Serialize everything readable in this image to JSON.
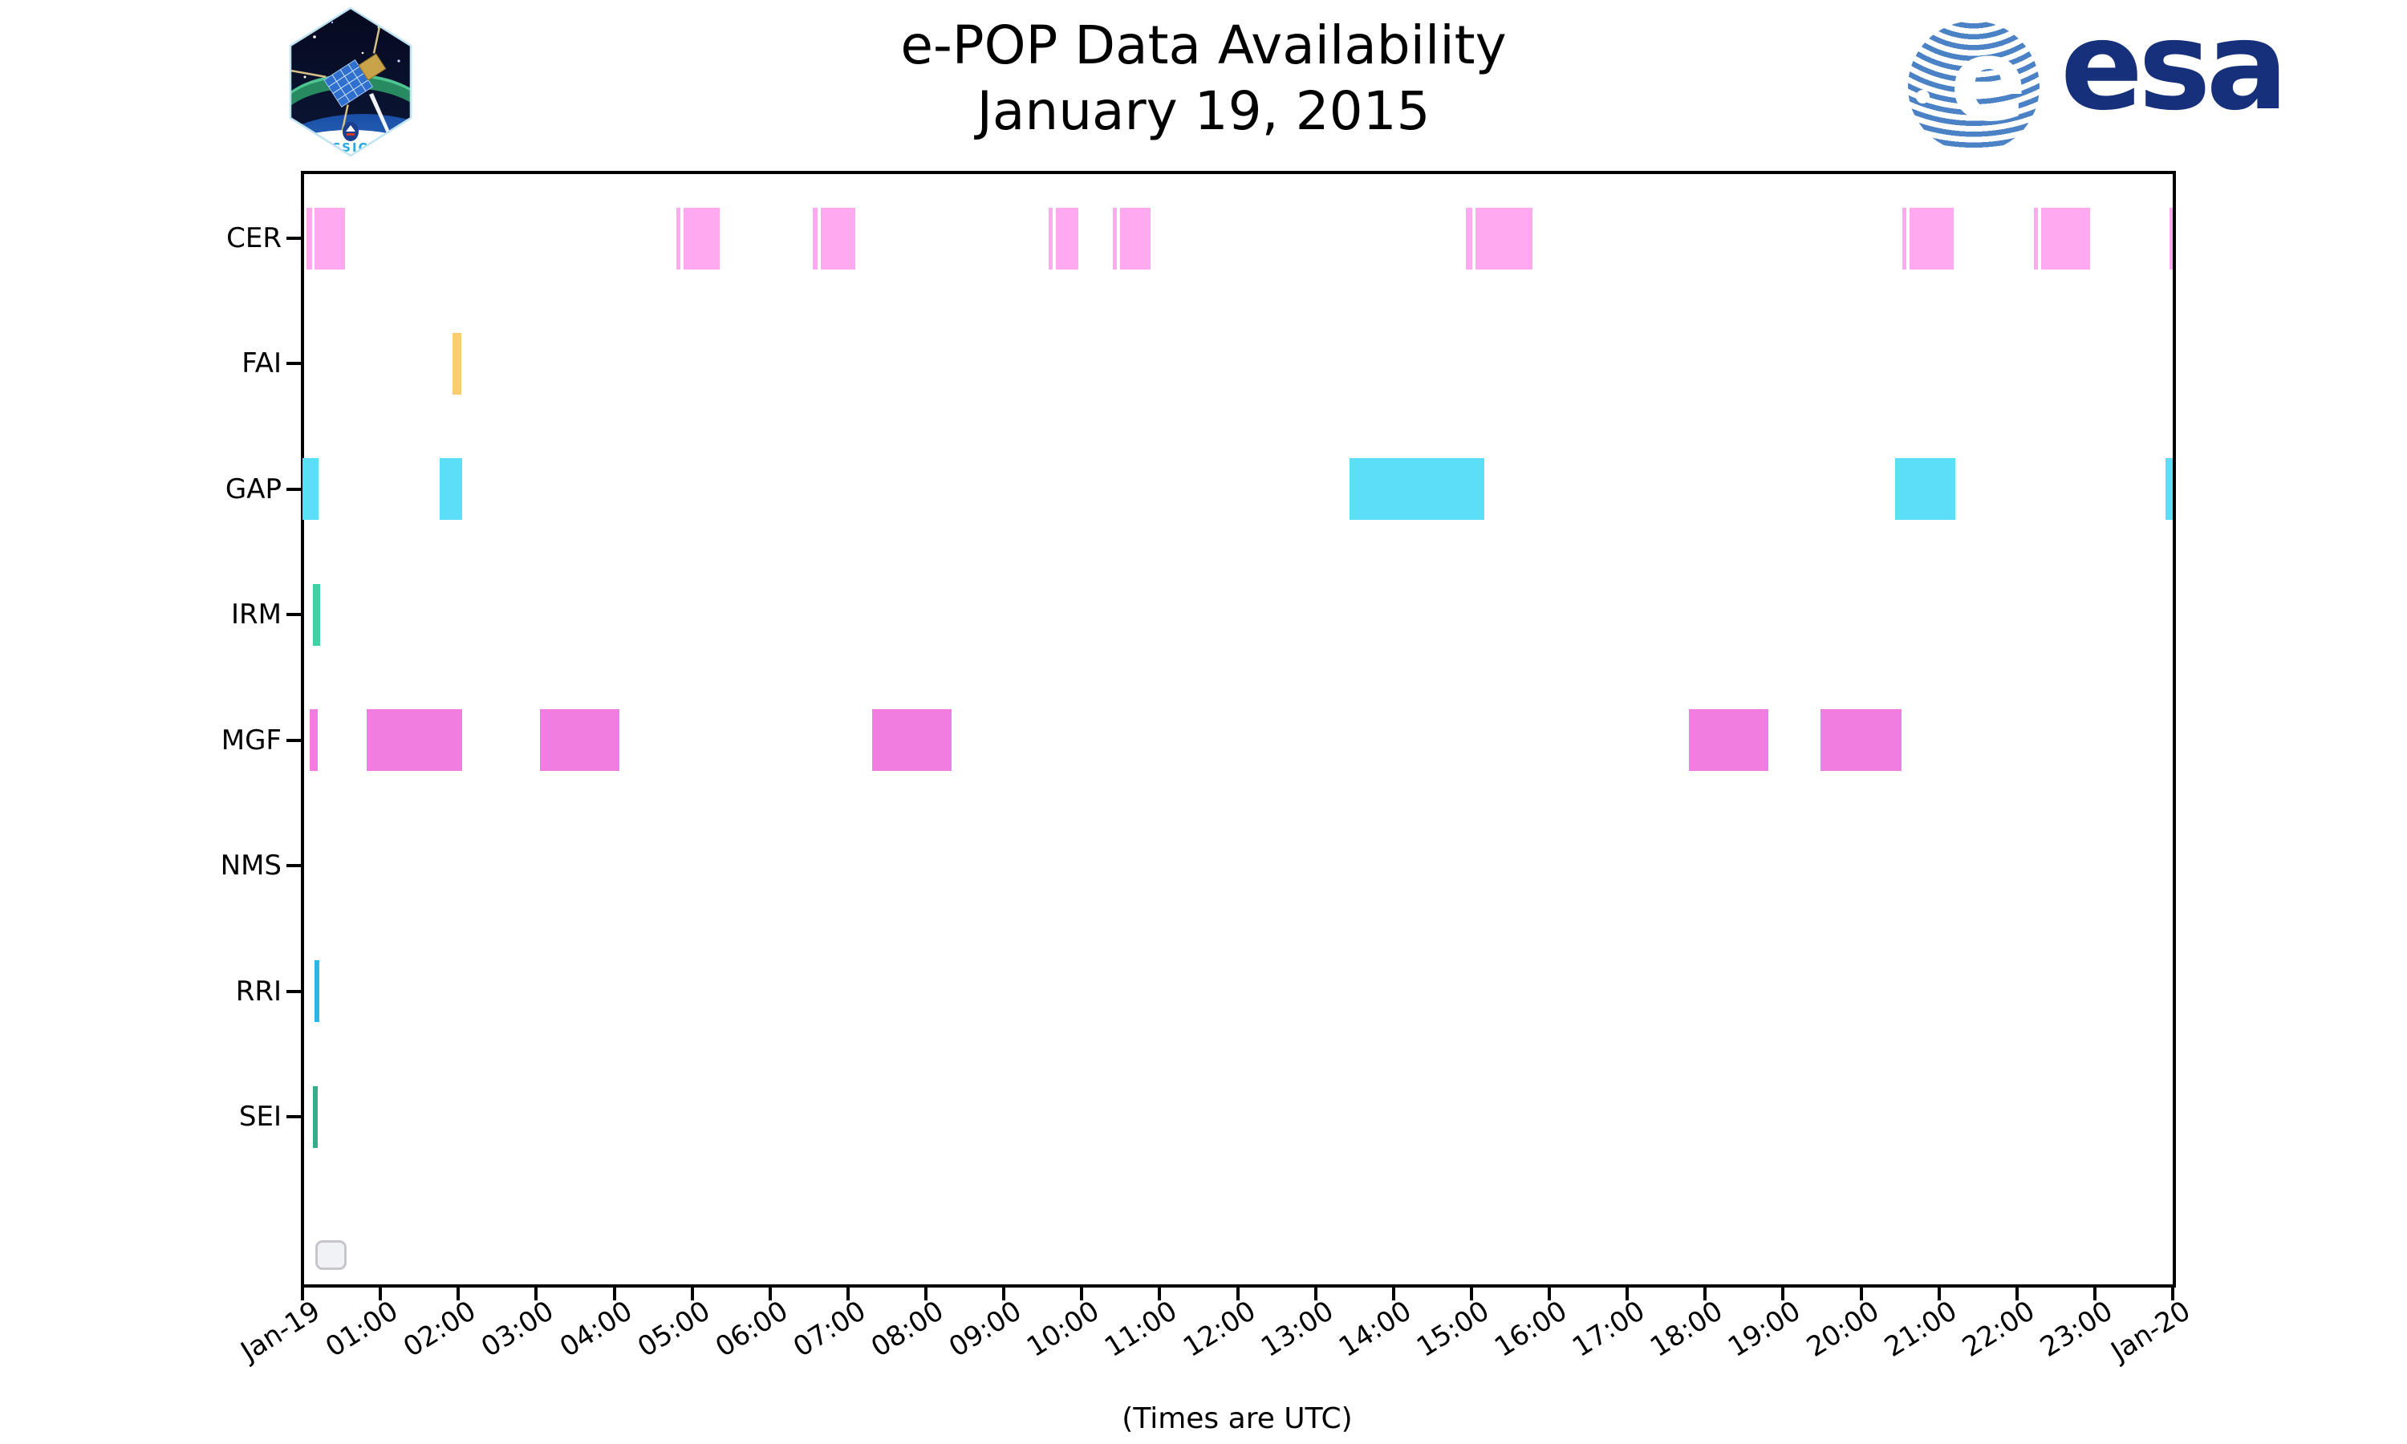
{
  "header": {
    "title_line1": "e-POP Data Availability",
    "title_line2": "January 19, 2015"
  },
  "logos": {
    "cassiope": {
      "label": "CASSIOPE"
    },
    "esa": {
      "wordmark": "esa",
      "globe_letter": "e"
    }
  },
  "footer": {
    "xlabel": "(Times are UTC)"
  },
  "chart_data": {
    "type": "timeline",
    "title": "e-POP Data Availability",
    "subtitle": "January 19, 2015",
    "xlabel": "(Times are UTC)",
    "x_axis": {
      "unit": "hours",
      "range": [
        0,
        24
      ],
      "tick_interval_hours": 1,
      "label_rotation_deg": 32,
      "tick_labels": [
        "Jan-19",
        "01:00",
        "02:00",
        "03:00",
        "04:00",
        "05:00",
        "06:00",
        "07:00",
        "08:00",
        "09:00",
        "10:00",
        "11:00",
        "12:00",
        "13:00",
        "14:00",
        "15:00",
        "16:00",
        "17:00",
        "18:00",
        "19:00",
        "20:00",
        "21:00",
        "22:00",
        "23:00",
        "Jan-20"
      ]
    },
    "legend_box_empty": true,
    "rows": [
      {
        "label": "CER",
        "color": "#ffaaf0",
        "segments": [
          [
            0.05,
            0.12
          ],
          [
            0.15,
            0.55
          ],
          [
            4.8,
            4.85
          ],
          [
            4.89,
            5.35
          ],
          [
            6.55,
            6.61
          ],
          [
            6.65,
            7.09
          ],
          [
            9.58,
            9.63
          ],
          [
            9.67,
            9.96
          ],
          [
            10.4,
            10.45
          ],
          [
            10.49,
            10.88
          ],
          [
            14.93,
            15.01
          ],
          [
            15.05,
            15.78
          ],
          [
            20.53,
            20.58
          ],
          [
            20.62,
            21.19
          ],
          [
            22.22,
            22.27
          ],
          [
            22.31,
            22.94
          ],
          [
            23.96,
            24
          ]
        ]
      },
      {
        "label": "FAI",
        "color": "#fbcd6e",
        "segments": [
          [
            1.93,
            2.04
          ]
        ]
      },
      {
        "label": "GAP",
        "color": "#5bdef8",
        "segments": [
          [
            0,
            0.21
          ],
          [
            1.76,
            2.05
          ],
          [
            13.44,
            15.17
          ],
          [
            20.44,
            21.21
          ],
          [
            23.91,
            24
          ]
        ]
      },
      {
        "label": "IRM",
        "color": "#3dd2a4",
        "segments": [
          [
            0.13,
            0.23
          ]
        ]
      },
      {
        "label": "MGF",
        "color": "#f07ee0",
        "segments": [
          [
            0.09,
            0.2
          ],
          [
            0.82,
            2.05
          ],
          [
            3.05,
            4.07
          ],
          [
            7.31,
            8.33
          ],
          [
            17.79,
            18.81
          ],
          [
            19.48,
            20.52
          ]
        ]
      },
      {
        "label": "NMS",
        "color": "#cccccc",
        "segments": []
      },
      {
        "label": "RRI",
        "color": "#2ab6ea",
        "segments": [
          [
            0.15,
            0.22
          ]
        ]
      },
      {
        "label": "SEI",
        "color": "#35ac8c",
        "segments": [
          [
            0.13,
            0.2
          ]
        ]
      }
    ]
  }
}
